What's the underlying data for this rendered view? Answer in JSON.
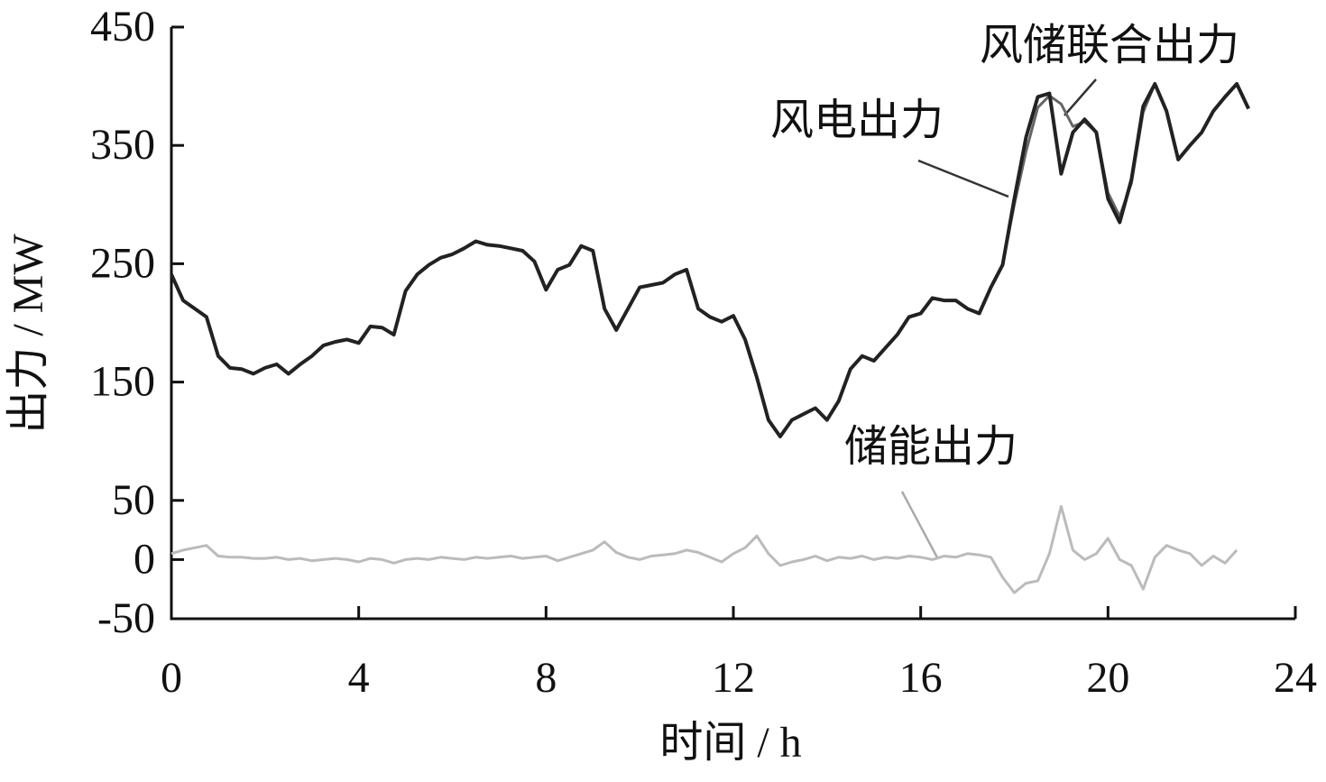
{
  "chart_data": {
    "type": "line",
    "xlabel": "时间 / h",
    "ylabel": "出力 / MW",
    "x": [
      0,
      0.25,
      0.5,
      0.75,
      1,
      1.25,
      1.5,
      1.75,
      2,
      2.25,
      2.5,
      2.75,
      3,
      3.25,
      3.5,
      3.75,
      4,
      4.25,
      4.5,
      4.75,
      5,
      5.25,
      5.5,
      5.75,
      6,
      6.25,
      6.5,
      6.75,
      7,
      7.25,
      7.5,
      7.75,
      8,
      8.25,
      8.5,
      8.75,
      9,
      9.25,
      9.5,
      9.75,
      10,
      10.25,
      10.5,
      10.75,
      11,
      11.25,
      11.5,
      11.75,
      12,
      12.25,
      12.5,
      12.75,
      13,
      13.25,
      13.5,
      13.75,
      14,
      14.25,
      14.5,
      14.75,
      15,
      15.25,
      15.5,
      15.75,
      16,
      16.25,
      16.5,
      16.75,
      17,
      17.25,
      17.5,
      17.75,
      18,
      18.25,
      18.5,
      18.75,
      19,
      19.25,
      19.5,
      19.75,
      20,
      20.25,
      20.5,
      20.75,
      21,
      21.25,
      21.5,
      21.75,
      22,
      22.25,
      22.5,
      22.75,
      23
    ],
    "series": [
      {
        "name": "风储联合出力",
        "color": "#666666",
        "values": [
          241,
          219,
          212,
          205,
          172,
          162,
          161,
          157,
          162,
          165,
          157,
          165,
          172,
          181,
          184,
          186,
          183,
          197,
          196,
          190,
          227,
          241,
          249,
          255,
          258,
          263,
          269,
          266,
          265,
          263,
          261,
          252,
          228,
          245,
          249,
          265,
          261,
          212,
          194,
          212,
          230,
          232,
          234,
          241,
          245,
          212,
          205,
          201,
          206,
          186,
          154,
          118,
          104,
          118,
          123,
          128,
          118,
          134,
          161,
          172,
          168,
          179,
          190,
          205,
          208,
          221,
          219,
          219,
          212,
          208,
          230,
          249,
          300,
          345,
          382,
          392,
          385,
          366,
          370,
          361,
          310,
          290,
          318,
          378,
          402,
          379,
          338,
          350,
          361,
          379,
          391,
          402,
          381
        ]
      },
      {
        "name": "风电出力",
        "color": "#222222",
        "values": [
          241,
          219,
          212,
          205,
          172,
          162,
          161,
          157,
          162,
          165,
          157,
          165,
          172,
          181,
          184,
          186,
          183,
          197,
          196,
          190,
          227,
          241,
          249,
          255,
          258,
          263,
          269,
          266,
          265,
          263,
          261,
          252,
          228,
          245,
          249,
          265,
          261,
          212,
          194,
          212,
          230,
          232,
          234,
          241,
          245,
          212,
          205,
          201,
          206,
          186,
          154,
          118,
          104,
          118,
          123,
          128,
          118,
          134,
          161,
          172,
          168,
          179,
          190,
          205,
          208,
          221,
          219,
          219,
          212,
          208,
          230,
          249,
          305,
          357,
          391,
          394,
          326,
          361,
          372,
          361,
          305,
          285,
          321,
          383,
          402,
          379,
          338,
          350,
          361,
          379,
          391,
          402,
          381
        ]
      },
      {
        "name": "储能出力",
        "color": "#bbbbbb",
        "values": [
          5,
          8,
          10,
          12,
          3,
          2,
          2,
          1,
          1,
          2,
          0,
          1,
          -1,
          0,
          1,
          0,
          -2,
          1,
          0,
          -3,
          0,
          1,
          0,
          2,
          1,
          0,
          2,
          1,
          2,
          3,
          1,
          2,
          3,
          -1,
          2,
          5,
          8,
          15,
          6,
          2,
          0,
          3,
          4,
          5,
          8,
          6,
          2,
          -2,
          5,
          10,
          20,
          5,
          -5,
          -2,
          0,
          3,
          -1,
          2,
          1,
          3,
          0,
          2,
          1,
          3,
          2,
          0,
          3,
          2,
          5,
          4,
          2,
          -15,
          -28,
          -20,
          -18,
          5,
          45,
          8,
          0,
          5,
          18,
          0,
          -5,
          -25,
          2,
          12,
          8,
          5,
          -5,
          3,
          -3,
          8,
          null
        ]
      }
    ],
    "xlim": [
      0,
      24
    ],
    "xticks": [
      0,
      4,
      8,
      12,
      16,
      20,
      24
    ],
    "ylim": [
      -50,
      450
    ],
    "yticks": [
      -50,
      0,
      50,
      150,
      250,
      350,
      450
    ]
  }
}
